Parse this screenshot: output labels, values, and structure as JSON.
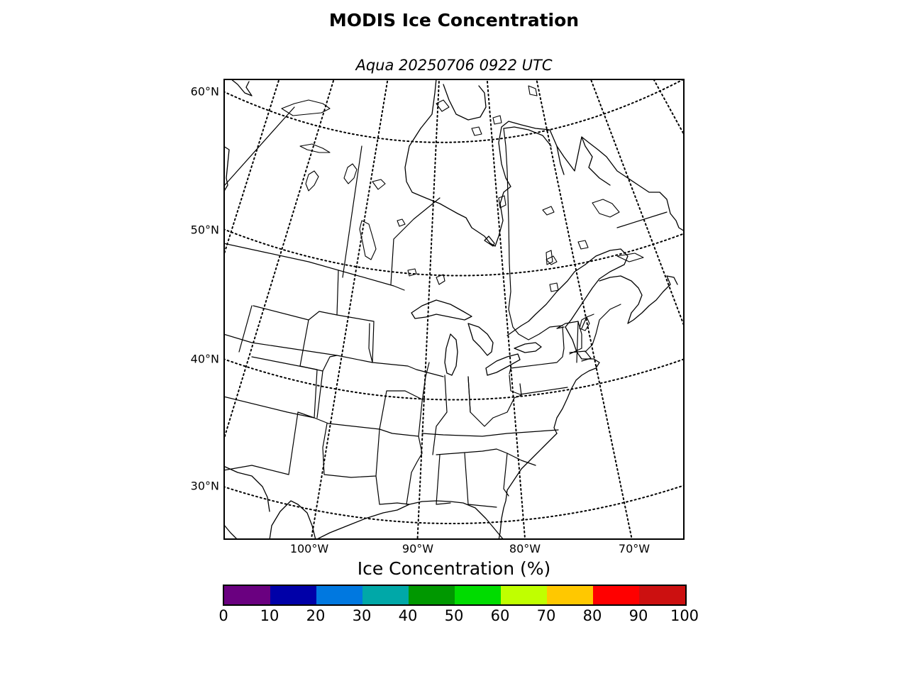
{
  "title": "MODIS Ice Concentration",
  "subtitle": "Aqua 20250706 0922 UTC",
  "map": {
    "projection": "lambert-conformal",
    "coastline_color": "#000000",
    "graticule_style": "dotted",
    "lat_labels": [
      "60°N",
      "50°N",
      "40°N",
      "30°N"
    ],
    "lon_labels": [
      "100°W",
      "90°W",
      "80°W",
      "70°W"
    ]
  },
  "colorbar": {
    "title": "Ice Concentration (%)",
    "colors": [
      "#6a0080",
      "#0000a8",
      "#0078e0",
      "#00a8a8",
      "#009800",
      "#00dc00",
      "#c0ff00",
      "#ffc800",
      "#ff0000",
      "#cc1010"
    ],
    "ticks": [
      "0",
      "10",
      "20",
      "30",
      "40",
      "50",
      "60",
      "70",
      "80",
      "90",
      "100"
    ]
  }
}
